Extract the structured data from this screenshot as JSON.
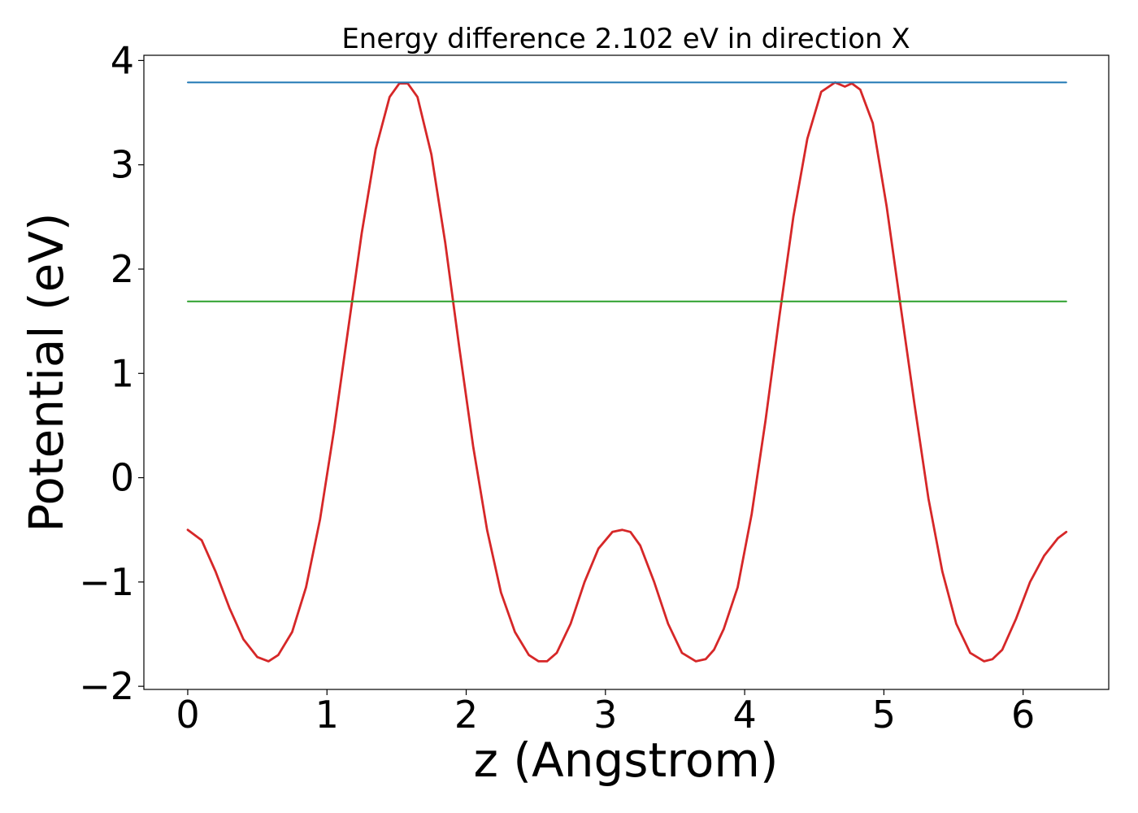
{
  "chart_data": {
    "type": "line",
    "title": "Energy difference 2.102 eV in direction X",
    "xlabel": "z (Angstrom)",
    "ylabel": "Potential (eV)",
    "xlim": [
      -0.315,
      6.615
    ],
    "ylim": [
      -2.03,
      4.05
    ],
    "x_ticks": [
      0,
      1,
      2,
      3,
      4,
      5,
      6
    ],
    "x_tick_labels": [
      "0",
      "1",
      "2",
      "3",
      "4",
      "5",
      "6"
    ],
    "y_ticks": [
      -2,
      -1,
      0,
      1,
      2,
      3,
      4
    ],
    "y_tick_labels": [
      "−2",
      "−1",
      "0",
      "1",
      "2",
      "3",
      "4"
    ],
    "grid": false,
    "legend": "none",
    "series": [
      {
        "color": "#d62728",
        "x": [
          0.0,
          0.1,
          0.2,
          0.3,
          0.4,
          0.5,
          0.58,
          0.65,
          0.75,
          0.85,
          0.95,
          1.05,
          1.15,
          1.25,
          1.35,
          1.45,
          1.52,
          1.58,
          1.65,
          1.75,
          1.85,
          1.95,
          2.05,
          2.15,
          2.25,
          2.35,
          2.45,
          2.52,
          2.58,
          2.65,
          2.75,
          2.85,
          2.95,
          3.05,
          3.12,
          3.18,
          3.25,
          3.35,
          3.45,
          3.55,
          3.65,
          3.72,
          3.78,
          3.85,
          3.95,
          4.05,
          4.15,
          4.25,
          4.35,
          4.45,
          4.55,
          4.65,
          4.72,
          4.77,
          4.83,
          4.92,
          5.02,
          5.12,
          5.22,
          5.32,
          5.42,
          5.52,
          5.62,
          5.72,
          5.78,
          5.85,
          5.95,
          6.05,
          6.15,
          6.25,
          6.31
        ],
        "y": [
          -0.5,
          -0.6,
          -0.9,
          -1.25,
          -1.55,
          -1.72,
          -1.76,
          -1.7,
          -1.48,
          -1.05,
          -0.4,
          0.45,
          1.4,
          2.35,
          3.15,
          3.65,
          3.78,
          3.78,
          3.65,
          3.1,
          2.25,
          1.25,
          0.3,
          -0.5,
          -1.1,
          -1.48,
          -1.7,
          -1.76,
          -1.76,
          -1.68,
          -1.4,
          -1.0,
          -0.68,
          -0.52,
          -0.5,
          -0.52,
          -0.65,
          -1.0,
          -1.4,
          -1.68,
          -1.76,
          -1.74,
          -1.65,
          -1.45,
          -1.05,
          -0.35,
          0.55,
          1.55,
          2.5,
          3.25,
          3.7,
          3.79,
          3.75,
          3.78,
          3.72,
          3.4,
          2.6,
          1.65,
          0.7,
          -0.2,
          -0.9,
          -1.4,
          -1.68,
          -1.76,
          -1.74,
          -1.65,
          -1.35,
          -1.0,
          -0.75,
          -0.58,
          -0.52
        ]
      },
      {
        "color": "#1f77b4",
        "x": [
          0.0,
          6.31
        ],
        "y": [
          3.79,
          3.79
        ]
      },
      {
        "color": "#2ca02c",
        "x": [
          0.0,
          6.31
        ],
        "y": [
          1.69,
          1.69
        ]
      }
    ]
  }
}
